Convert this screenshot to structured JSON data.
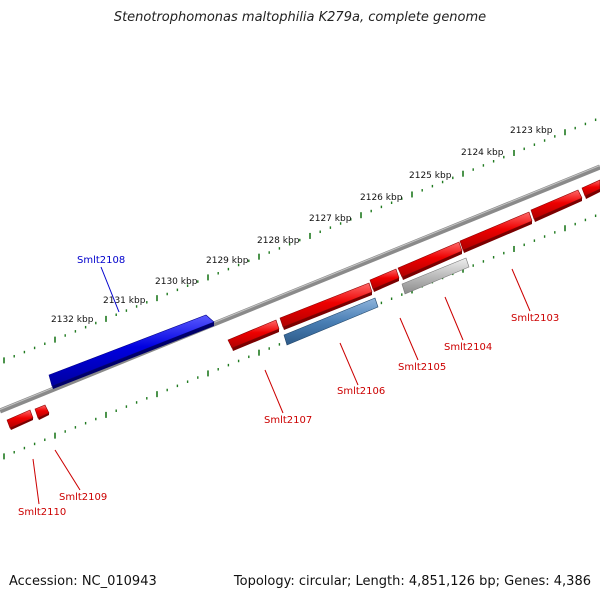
{
  "title": "Stenotrophomonas maltophilia K279a, complete genome",
  "footer": {
    "accession": "Accession: NC_010943",
    "summary": "Topology: circular; Length: 4,851,126 bp; Genes: 4,386"
  },
  "ruler_labels": [
    "2123 kbp",
    "2124 kbp",
    "2125 kbp",
    "2126 kbp",
    "2127 kbp",
    "2128 kbp",
    "2129 kbp",
    "2130 kbp",
    "2131 kbp",
    "2132 kbp"
  ],
  "colors": {
    "backbone": "#8a8a8a",
    "ticks": "#1f7a1f",
    "forward_gene": "#0000e0",
    "reverse_gene": "#ee0000",
    "steelblue_gene": "#4a7fb5",
    "grey_gene": "#b8b8b8",
    "reverse_label": "#cc0000",
    "forward_label": "#0000cc"
  },
  "gene_labels": {
    "g2108": "Smlt2108",
    "g2103": "Smlt2103",
    "g2104": "Smlt2104",
    "g2105": "Smlt2105",
    "g2106": "Smlt2106",
    "g2107": "Smlt2107",
    "g2109": "Smlt2109",
    "g2110": "Smlt2110"
  }
}
